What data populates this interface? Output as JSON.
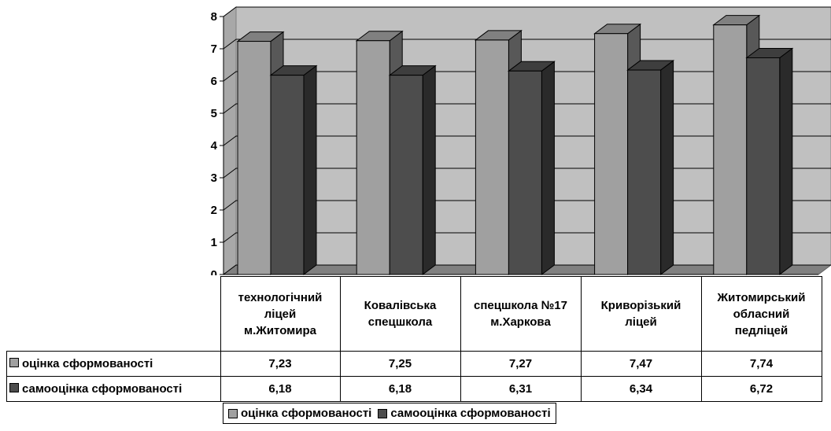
{
  "chart_data": {
    "type": "bar",
    "style": "3d-clustered-column",
    "categories": [
      "технологічний ліцей м.Житомира",
      "Ковалівська спецшкола",
      "спецшкола №17 м.Харкова",
      "Криворізький ліцей",
      "Житомирський обласний педліцей"
    ],
    "category_lines": [
      [
        "технологічний",
        "ліцей",
        "м.Житомира"
      ],
      [
        "Ковалівська",
        "спецшкола"
      ],
      [
        "спецшкола №17",
        "м.Харкова"
      ],
      [
        "Криворізький",
        "ліцей"
      ],
      [
        "Житомирський",
        "обласний",
        "педліцей"
      ]
    ],
    "series": [
      {
        "name": "оцінка сформованості",
        "values": [
          7.23,
          7.25,
          7.27,
          7.47,
          7.74
        ],
        "value_labels": [
          "7,23",
          "7,25",
          "7,27",
          "7,47",
          "7,74"
        ],
        "color": "#a0a0a0"
      },
      {
        "name": "самооцінка сформованості",
        "values": [
          6.18,
          6.18,
          6.31,
          6.34,
          6.72
        ],
        "value_labels": [
          "6,18",
          "6,18",
          "6,31",
          "6,34",
          "6,72"
        ],
        "color": "#4d4d4d"
      }
    ],
    "yticks": [
      0,
      1,
      2,
      3,
      4,
      5,
      6,
      7,
      8
    ],
    "ylim": [
      0,
      8
    ],
    "grid": true,
    "plot_background": "#c0c0c0",
    "legend_position": "bottom",
    "data_table": true
  }
}
